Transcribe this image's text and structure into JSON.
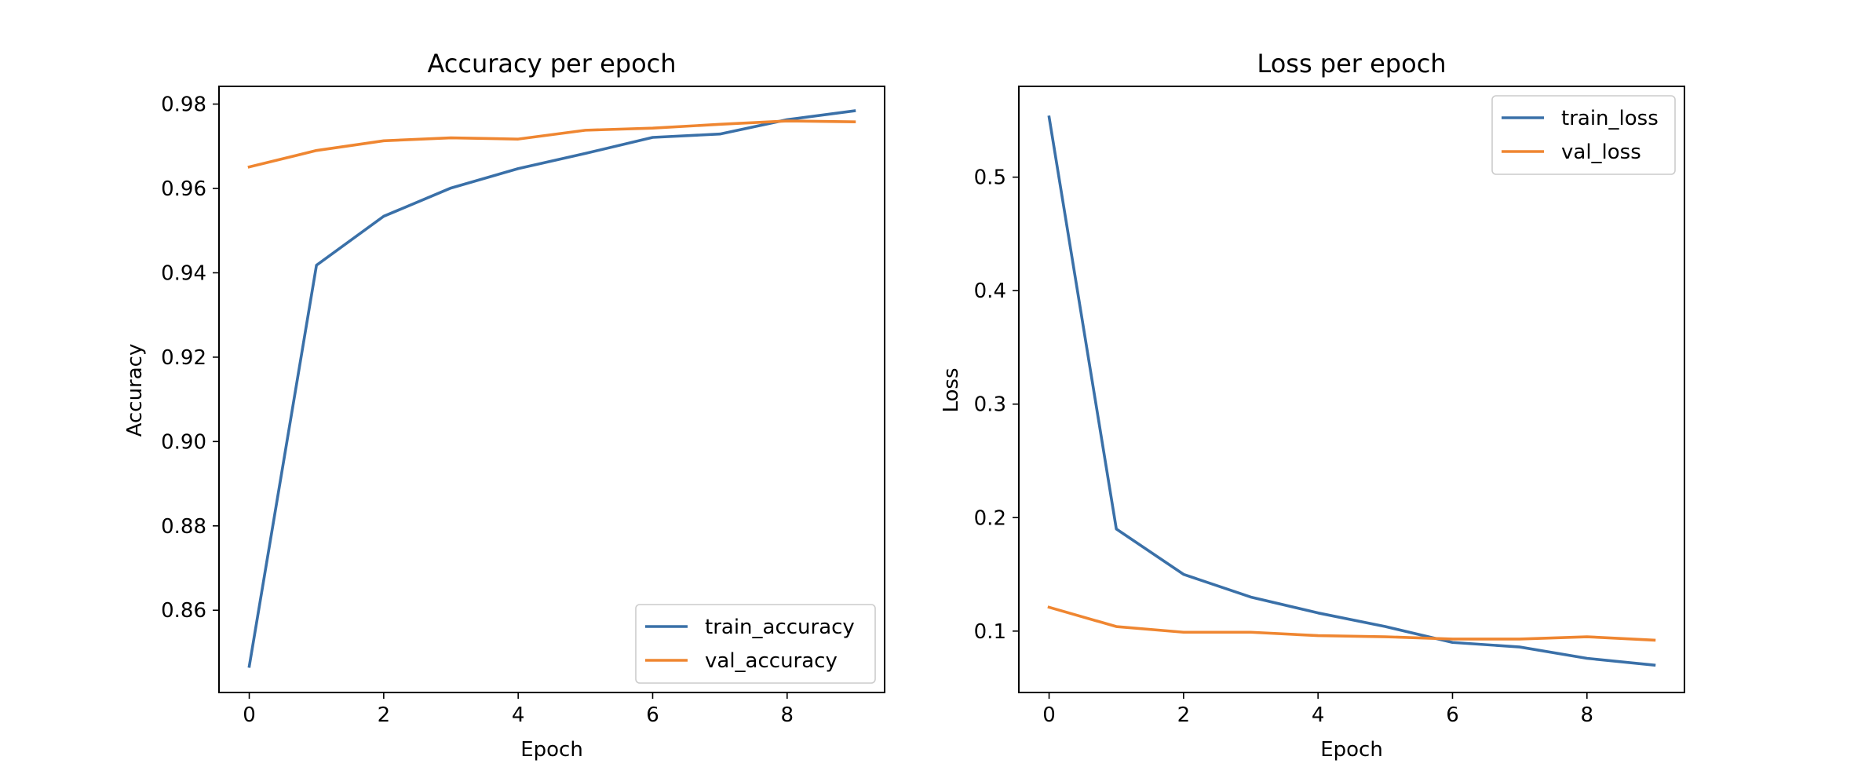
{
  "chart_data": [
    {
      "type": "line",
      "title": "Accuracy per epoch",
      "xlabel": "Epoch",
      "ylabel": "Accuracy",
      "x": [
        0,
        1,
        2,
        3,
        4,
        5,
        6,
        7,
        8,
        9
      ],
      "xlim": [
        -0.45,
        9.45
      ],
      "ylim": [
        0.8405,
        0.9842
      ],
      "xticks": [
        0,
        2,
        4,
        6,
        8
      ],
      "xtick_labels": [
        "0",
        "2",
        "4",
        "6",
        "8"
      ],
      "yticks": [
        0.86,
        0.88,
        0.9,
        0.92,
        0.94,
        0.96,
        0.98
      ],
      "ytick_labels": [
        "0.86",
        "0.88",
        "0.90",
        "0.92",
        "0.94",
        "0.96",
        "0.98"
      ],
      "grid": false,
      "legend_position": "lower-right",
      "series": [
        {
          "name": "train_accuracy",
          "color": "#3a70a8",
          "values": [
            0.8467,
            0.9418,
            0.9534,
            0.9601,
            0.9647,
            0.9683,
            0.9721,
            0.9729,
            0.9763,
            0.9784
          ]
        },
        {
          "name": "val_accuracy",
          "color": "#ef8631",
          "values": [
            0.9651,
            0.969,
            0.9713,
            0.972,
            0.9717,
            0.9738,
            0.9743,
            0.9752,
            0.976,
            0.9758
          ]
        }
      ]
    },
    {
      "type": "line",
      "title": "Loss per epoch",
      "xlabel": "Epoch",
      "ylabel": "Loss",
      "x": [
        0,
        1,
        2,
        3,
        4,
        5,
        6,
        7,
        8,
        9
      ],
      "xlim": [
        -0.45,
        9.45
      ],
      "ylim": [
        0.0459,
        0.58
      ],
      "xticks": [
        0,
        2,
        4,
        6,
        8
      ],
      "xtick_labels": [
        "0",
        "2",
        "4",
        "6",
        "8"
      ],
      "yticks": [
        0.1,
        0.2,
        0.3,
        0.4,
        0.5
      ],
      "ytick_labels": [
        "0.1",
        "0.2",
        "0.3",
        "0.4",
        "0.5"
      ],
      "grid": false,
      "legend_position": "upper-right",
      "series": [
        {
          "name": "train_loss",
          "color": "#3a70a8",
          "values": [
            0.553,
            0.19,
            0.15,
            0.13,
            0.116,
            0.104,
            0.09,
            0.086,
            0.076,
            0.07
          ]
        },
        {
          "name": "val_loss",
          "color": "#ef8631",
          "values": [
            0.121,
            0.104,
            0.099,
            0.099,
            0.096,
            0.095,
            0.093,
            0.093,
            0.095,
            0.092
          ]
        }
      ]
    }
  ]
}
